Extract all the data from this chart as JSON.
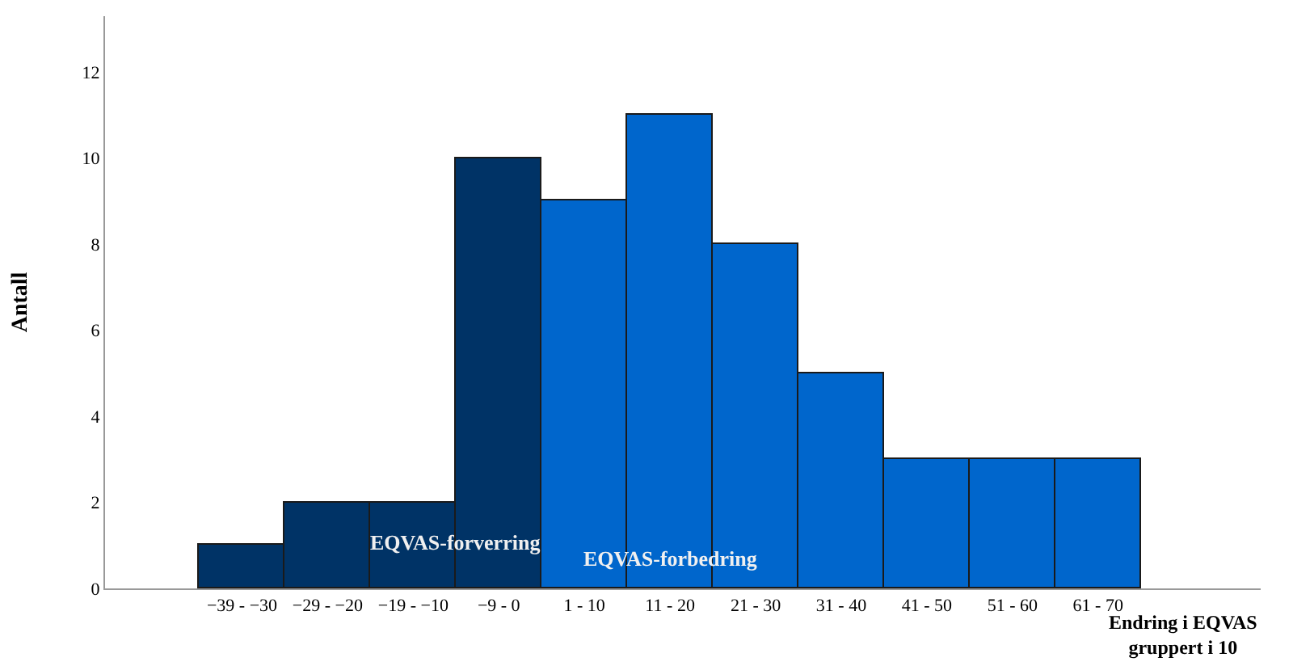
{
  "chart_data": {
    "type": "bar",
    "xlabel": "Endring i EQVAS gruppert i 10",
    "ylabel": "Antall",
    "categories": [
      "−39 - −30",
      "−29 - −20",
      "−19 - −10",
      "−9 - 0",
      "1 - 10",
      "11 - 20",
      "21 - 30",
      "31 - 40",
      "41 - 50",
      "51 - 60",
      "61 - 70"
    ],
    "values": [
      1,
      2,
      2,
      10,
      9,
      11,
      8,
      5,
      3,
      3,
      3
    ],
    "colors": [
      "#003366",
      "#003366",
      "#003366",
      "#003366",
      "#0066cc",
      "#0066cc",
      "#0066cc",
      "#0066cc",
      "#0066cc",
      "#0066cc",
      "#0066cc"
    ],
    "ylim": [
      0,
      13.3
    ],
    "yticks": [
      0,
      2,
      4,
      6,
      8,
      10,
      12
    ],
    "annotations": [
      "EQVAS-forverring",
      "EQVAS-forbedring"
    ]
  }
}
